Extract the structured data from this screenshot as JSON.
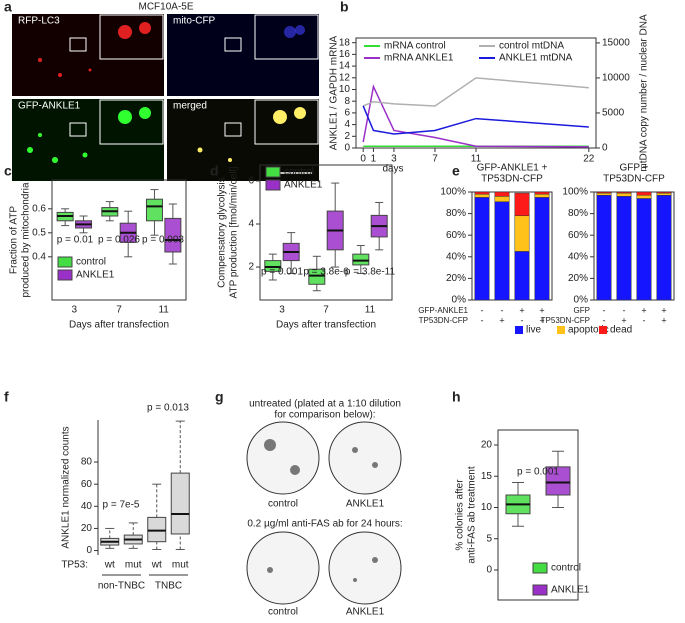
{
  "panel_labels": [
    "a",
    "b",
    "c",
    "d",
    "e",
    "f",
    "g",
    "h"
  ],
  "figure_a": {
    "title": "MCF10A-5E",
    "channels": [
      "RFP-LC3",
      "mito-CFP",
      "GFP-ANKLE1",
      "merged"
    ]
  },
  "figure_g": {
    "caption_top": [
      "untreated (plated at a 1:10 dilution",
      "for comparison below):"
    ],
    "caption_bottom": "0.2 µg/ml anti-FAS ab for 24 hours:",
    "labels": [
      "control",
      "ANKLE1",
      "control",
      "ANKLE1"
    ]
  },
  "chart_data": [
    {
      "type": "line",
      "xlabel": "days",
      "ylabel": "ANKLE1 / GAPDH mRNA",
      "y2label": "mtDNA copy number / nuclear DNA",
      "x": [
        0,
        1,
        3,
        7,
        11,
        22
      ],
      "xlim": [
        -0.7,
        22.7
      ],
      "xticks": [
        0,
        1,
        3,
        7,
        11,
        22
      ],
      "ylim": [
        0,
        18.8
      ],
      "yticks": [
        0,
        2,
        4,
        6,
        8,
        10,
        12,
        14,
        16,
        18
      ],
      "y2lim": [
        0,
        15700
      ],
      "y2ticks": [
        0,
        5000,
        10000,
        15000
      ],
      "series": [
        {
          "name": "mRNA control",
          "color": "#33dd33",
          "values": [
            0.3,
            0.3,
            0.3,
            0.3,
            0.3,
            0.3
          ]
        },
        {
          "name": "mRNA ANKLE1",
          "color": "#9b30c9",
          "values": [
            1,
            10.5,
            3,
            1.8,
            0.3,
            0.2
          ]
        },
        {
          "name": "control mtDNA",
          "color": "#b0b0b0",
          "axis": "y2",
          "values": [
            6000,
            6600,
            6300,
            6000,
            10000,
            8600
          ]
        },
        {
          "name": "ANKLE1 mtDNA",
          "color": "#1a1adc",
          "axis": "y2",
          "values": [
            6000,
            2500,
            2000,
            2500,
            4200,
            3000
          ]
        }
      ]
    },
    {
      "type": "box",
      "ylabel": [
        "Fraction of ATP",
        "produced by mitochondria"
      ],
      "xlabel": "Days after transfection",
      "categories": [
        "3",
        "7",
        "11"
      ],
      "ylim": [
        0.22,
        0.72
      ],
      "yticks": [
        0.4,
        0.5,
        0.6
      ],
      "annotations": [
        "p = 0.01",
        "p = 0.026",
        "p = 0.003"
      ],
      "series": [
        {
          "name": "control",
          "color": "#44dd44",
          "min": [
            0.53,
            0.55,
            0.49
          ],
          "q1": [
            0.55,
            0.57,
            0.55
          ],
          "median": [
            0.57,
            0.59,
            0.61
          ],
          "q3": [
            0.585,
            0.605,
            0.64
          ],
          "max": [
            0.6,
            0.63,
            0.68
          ]
        },
        {
          "name": "ANKLE1",
          "color": "#9b30c9",
          "min": [
            0.5,
            0.4,
            0.37
          ],
          "q1": [
            0.52,
            0.46,
            0.42
          ],
          "median": [
            0.535,
            0.5,
            0.47
          ],
          "q3": [
            0.55,
            0.54,
            0.56
          ],
          "max": [
            0.57,
            0.59,
            0.62
          ]
        }
      ]
    },
    {
      "type": "box",
      "ylabel": [
        "Compensatory glycolysis",
        "ATP production [fmol/min/cell]"
      ],
      "xlabel": "Days after transfection",
      "categories": [
        "3",
        "7",
        "11"
      ],
      "ylim": [
        0.47,
        6.74
      ],
      "yticks": [
        2,
        4,
        6
      ],
      "annotations": [
        "p = 0.001",
        "p = 3.8e-6",
        "p = 3.8e-11"
      ],
      "series": [
        {
          "name": "control",
          "color": "#44dd44",
          "min": [
            1.4,
            0.9,
            1.7
          ],
          "q1": [
            1.8,
            1.2,
            2.1
          ],
          "median": [
            2.0,
            1.6,
            2.3
          ],
          "q3": [
            2.3,
            1.9,
            2.6
          ],
          "max": [
            2.6,
            2.5,
            3.0
          ]
        },
        {
          "name": "ANKLE1",
          "color": "#9b30c9",
          "min": [
            1.7,
            2.0,
            2.8
          ],
          "q1": [
            2.3,
            2.8,
            3.4
          ],
          "median": [
            2.7,
            3.7,
            3.9
          ],
          "q3": [
            3.1,
            4.6,
            4.4
          ],
          "max": [
            3.6,
            5.9,
            5.0
          ]
        }
      ]
    },
    {
      "type": "stacked_bar",
      "title": [
        "GFP-ANKLE1 +",
        "TP53DN-CFP"
      ],
      "ylim": [
        0,
        100
      ],
      "yticks": [
        {
          "value": 0,
          "label": "0%"
        },
        {
          "value": 20,
          "label": "20%"
        },
        {
          "value": 40,
          "label": "40%"
        },
        {
          "value": 60,
          "label": "60%"
        },
        {
          "value": 80,
          "label": "80%"
        },
        {
          "value": 100,
          "label": "100%"
        }
      ],
      "rows": [
        {
          "name": "GFP-ANKLE1",
          "marks": [
            "-",
            "-",
            "+",
            "+"
          ]
        },
        {
          "name": "TP53DN-CFP",
          "marks": [
            "-",
            "+",
            "-",
            "+"
          ]
        }
      ],
      "series": [
        {
          "name": "live",
          "color": "#1515ff",
          "values": [
            95,
            91,
            45,
            95
          ]
        },
        {
          "name": "apoptotic",
          "color": "#ffc21a",
          "values": [
            3,
            5,
            33,
            3
          ]
        },
        {
          "name": "dead",
          "color": "#ff1a1a",
          "values": [
            2,
            4,
            21,
            2
          ]
        }
      ]
    },
    {
      "type": "stacked_bar",
      "title": [
        "GFP +",
        "TP53DN-CFP"
      ],
      "ylim": [
        0,
        100
      ],
      "yticks": [
        {
          "value": 0,
          "label": "0%"
        },
        {
          "value": 20,
          "label": "20%"
        },
        {
          "value": 40,
          "label": "40%"
        },
        {
          "value": 60,
          "label": "60%"
        },
        {
          "value": 80,
          "label": "80%"
        },
        {
          "value": 100,
          "label": "100%"
        }
      ],
      "rows": [
        {
          "name": "GFP",
          "marks": [
            "-",
            "-",
            "+",
            "+"
          ]
        },
        {
          "name": "TP53DN-CFP",
          "marks": [
            "-",
            "+",
            "-",
            "+"
          ]
        }
      ],
      "series": [
        {
          "color": "#1515ff",
          "values": [
            97,
            96,
            94,
            97
          ]
        },
        {
          "color": "#ffc21a",
          "values": [
            2,
            3,
            3,
            2
          ]
        },
        {
          "color": "#ff1a1a",
          "values": [
            1,
            1,
            3,
            1
          ]
        }
      ]
    },
    {
      "type": "box",
      "ylabel": [
        "ANKLE1 normalized counts"
      ],
      "category_title": "TP53:",
      "categories": [
        "wt",
        "mut",
        "wt",
        "mut"
      ],
      "groups": [
        "non-TNBC",
        "TNBC"
      ],
      "ylim": [
        -4,
        118
      ],
      "yticks": [
        0,
        20,
        40,
        60,
        80
      ],
      "annotations": [
        "p = 7e-5",
        "p = 0.013"
      ],
      "series": [
        {
          "color": "#d9d9d9",
          "min": [
            2,
            2,
            1,
            1
          ],
          "q1": [
            5,
            6,
            8,
            15
          ],
          "median": [
            8,
            10,
            18,
            33
          ],
          "q3": [
            11,
            14,
            30,
            70
          ],
          "max": [
            20,
            25,
            60,
            117
          ]
        }
      ]
    },
    {
      "type": "box",
      "ylabel": [
        "% colonies after",
        "anti-FAS ab treatment"
      ],
      "ylim": [
        -4.8,
        22.4
      ],
      "yticks": [
        0,
        5,
        10,
        15,
        20
      ],
      "annotations": [
        "p = 0.001"
      ],
      "series": [
        {
          "name": "control",
          "color": "#44dd44",
          "min": [
            7
          ],
          "q1": [
            9
          ],
          "median": [
            10.5
          ],
          "q3": [
            12
          ],
          "max": [
            14
          ]
        },
        {
          "name": "ANKLE1",
          "color": "#9b30c9",
          "min": [
            10
          ],
          "q1": [
            12
          ],
          "median": [
            14
          ],
          "q3": [
            16.5
          ],
          "max": [
            19
          ]
        }
      ]
    }
  ]
}
